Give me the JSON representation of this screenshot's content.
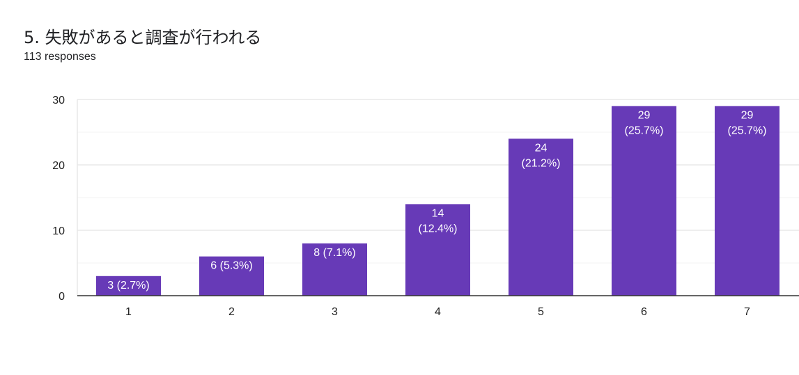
{
  "chart_data": {
    "type": "bar",
    "title": "5. 失敗があると調査が行われる",
    "subtitle": "113 responses",
    "categories": [
      "1",
      "2",
      "3",
      "4",
      "5",
      "6",
      "7"
    ],
    "values": [
      3,
      6,
      8,
      14,
      24,
      29,
      29
    ],
    "data_labels": [
      [
        "3 (2.7%)"
      ],
      [
        "6 (5.3%)"
      ],
      [
        "8 (7.1%)"
      ],
      [
        "14",
        "(12.4%)"
      ],
      [
        "24",
        "(21.2%)"
      ],
      [
        "29",
        "(25.7%)"
      ],
      [
        "29",
        "(25.7%)"
      ]
    ],
    "ylim": [
      0,
      30
    ],
    "yticks": [
      0,
      10,
      20,
      30
    ],
    "xlabel": "",
    "ylabel": "",
    "grid": true,
    "legend": "none",
    "bar_color": "#673ab7"
  }
}
